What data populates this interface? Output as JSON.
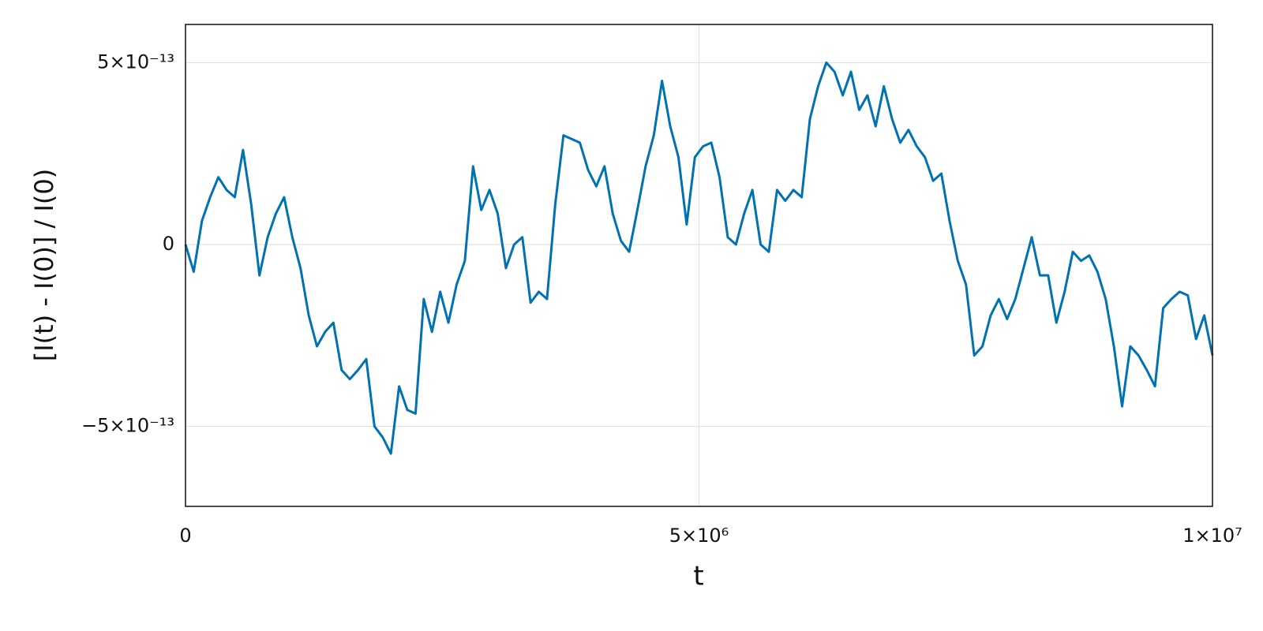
{
  "chart_data": {
    "type": "line",
    "xlabel": "t",
    "ylabel": "[I(t) - I(0)] / I(0)",
    "color": "#0072b2",
    "grid": true,
    "xlim": [
      0,
      10000000
    ],
    "ylim": [
      -7.2e-13,
      6.05e-13
    ],
    "xticks": [
      0,
      {
        "value": 5000000,
        "label": "5×10⁶"
      },
      {
        "value": 10000000,
        "label": "1×10⁷"
      }
    ],
    "yticks": [
      {
        "value": -5e-13,
        "label": "−5×10⁻¹³"
      },
      0,
      {
        "value": 5e-13,
        "label": "5×10⁻¹³"
      }
    ],
    "x": [
      0,
      80000,
      160000,
      240000,
      320000,
      400000,
      480000,
      560000,
      640000,
      720000,
      800000,
      880000,
      960000,
      1040000,
      1120000,
      1200000,
      1280000,
      1360000,
      1440000,
      1520000,
      1600000,
      1680000,
      1760000,
      1840000,
      1920000,
      2000000,
      2080000,
      2160000,
      2240000,
      2320000,
      2400000,
      2480000,
      2560000,
      2640000,
      2720000,
      2800000,
      2880000,
      2960000,
      3040000,
      3120000,
      3200000,
      3280000,
      3360000,
      3440000,
      3520000,
      3600000,
      3680000,
      3760000,
      3840000,
      3920000,
      4000000,
      4080000,
      4160000,
      4240000,
      4320000,
      4400000,
      4480000,
      4560000,
      4640000,
      4720000,
      4800000,
      4880000,
      4960000,
      5040000,
      5120000,
      5200000,
      5280000,
      5360000,
      5440000,
      5520000,
      5600000,
      5680000,
      5760000,
      5840000,
      5920000,
      6000000,
      6080000,
      6160000,
      6240000,
      6320000,
      6400000,
      6480000,
      6560000,
      6640000,
      6720000,
      6800000,
      6880000,
      6960000,
      7040000,
      7120000,
      7200000,
      7280000,
      7360000,
      7440000,
      7520000,
      7600000,
      7680000,
      7760000,
      7840000,
      7920000,
      8000000,
      8080000,
      8160000,
      8240000,
      8320000,
      8400000,
      8480000,
      8560000,
      8640000,
      8720000,
      8800000,
      8880000,
      8960000,
      9040000,
      9120000,
      9200000,
      9280000,
      9360000,
      9440000,
      9520000,
      9600000,
      9680000,
      9760000,
      9840000,
      9920000,
      10000000
    ],
    "values": [
      0,
      -7.5e-14,
      6.5e-14,
      1.3e-13,
      1.85e-13,
      1.5e-13,
      1.3e-13,
      2.6e-13,
      1.1e-13,
      -8.5e-14,
      2e-14,
      8.5e-14,
      1.3e-13,
      2e-14,
      -6.5e-14,
      -1.95e-13,
      -2.8e-13,
      -2.4e-13,
      -2.15e-13,
      -3.45e-13,
      -3.7e-13,
      -3.45e-13,
      -3.15e-13,
      -5e-13,
      -5.3e-13,
      -5.75e-13,
      -3.9e-13,
      -4.55e-13,
      -4.65e-13,
      -1.5e-13,
      -2.4e-13,
      -1.3e-13,
      -2.15e-13,
      -1.1e-13,
      -4.5e-14,
      2.15e-13,
      9.5e-14,
      1.5e-13,
      8.5e-14,
      -6.5e-14,
      0,
      2e-14,
      -1.6e-13,
      -1.3e-13,
      -1.5e-13,
      1.1e-13,
      3e-13,
      2.9e-13,
      2.8e-13,
      2.05e-13,
      1.6e-13,
      2.15e-13,
      8.5e-14,
      1e-14,
      -2e-14,
      9.5e-14,
      2.15e-13,
      3e-13,
      4.5e-13,
      3.25e-13,
      2.4e-13,
      5.5e-14,
      2.4e-13,
      2.7e-13,
      2.8e-13,
      1.85e-13,
      2e-14,
      0,
      8.5e-14,
      1.5e-13,
      0,
      -2e-14,
      1.5e-13,
      1.2e-13,
      1.5e-13,
      1.3e-13,
      3.45e-13,
      4.35e-13,
      5e-13,
      4.75e-13,
      4.1e-13,
      4.75e-13,
      3.7e-13,
      4.1e-13,
      3.25e-13,
      4.35e-13,
      3.45e-13,
      2.8e-13,
      3.15e-13,
      2.7e-13,
      2.4e-13,
      1.75e-13,
      1.95e-13,
      6.5e-14,
      -4.5e-14,
      -1.1e-13,
      -3.05e-13,
      -2.8e-13,
      -1.95e-13,
      -1.5e-13,
      -2.05e-13,
      -1.5e-13,
      -6.5e-14,
      2e-14,
      -8.5e-14,
      -8.5e-14,
      -2.15e-13,
      -1.3e-13,
      -2e-14,
      -4.5e-14,
      -3e-14,
      -7.5e-14,
      -1.5e-13,
      -2.8e-13,
      -4.45e-13,
      -2.8e-13,
      -3.05e-13,
      -3.45e-13,
      -3.9e-13,
      -1.75e-13,
      -1.5e-13,
      -1.3e-13,
      -1.4e-13,
      -2.6e-13,
      -1.95e-13,
      -3.05e-13
    ]
  }
}
